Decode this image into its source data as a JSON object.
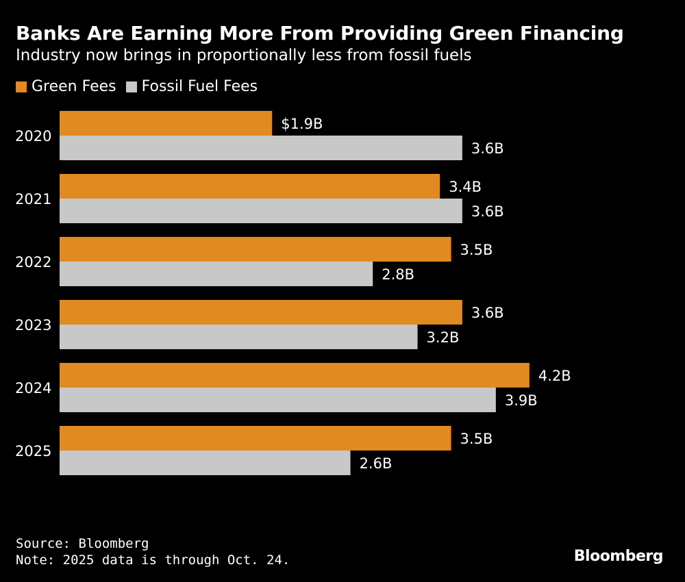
{
  "colors": {
    "background": "#000000",
    "green_fees": "#E08A22",
    "fossil_fuel_fees": "#C8C8C8",
    "text": "#FFFFFF"
  },
  "chart_data": {
    "type": "bar",
    "orientation": "horizontal",
    "title": "Banks Are Earning More From Providing Green Financing",
    "subtitle": "Industry now brings in proportionally less from fossil fuels",
    "categories": [
      "2020",
      "2021",
      "2022",
      "2023",
      "2024",
      "2025"
    ],
    "series": [
      {
        "name": "Green Fees",
        "values": [
          1.9,
          3.4,
          3.5,
          3.6,
          4.2,
          3.5
        ],
        "labels": [
          "$1.9B",
          "3.4B",
          "3.5B",
          "3.6B",
          "4.2B",
          "3.5B"
        ]
      },
      {
        "name": "Fossil Fuel Fees",
        "values": [
          3.6,
          3.6,
          2.8,
          3.2,
          3.9,
          2.6
        ],
        "labels": [
          "3.6B",
          "3.6B",
          "2.8B",
          "3.2B",
          "3.9B",
          "2.6B"
        ]
      }
    ],
    "xlabel": "",
    "ylabel": "",
    "xlim": [
      0,
      5.5
    ],
    "grid": false,
    "legend": "top-left"
  },
  "footer": {
    "source": "Source: Bloomberg",
    "note": "Note: 2025 data is through Oct. 24.",
    "logo": "Bloomberg"
  }
}
